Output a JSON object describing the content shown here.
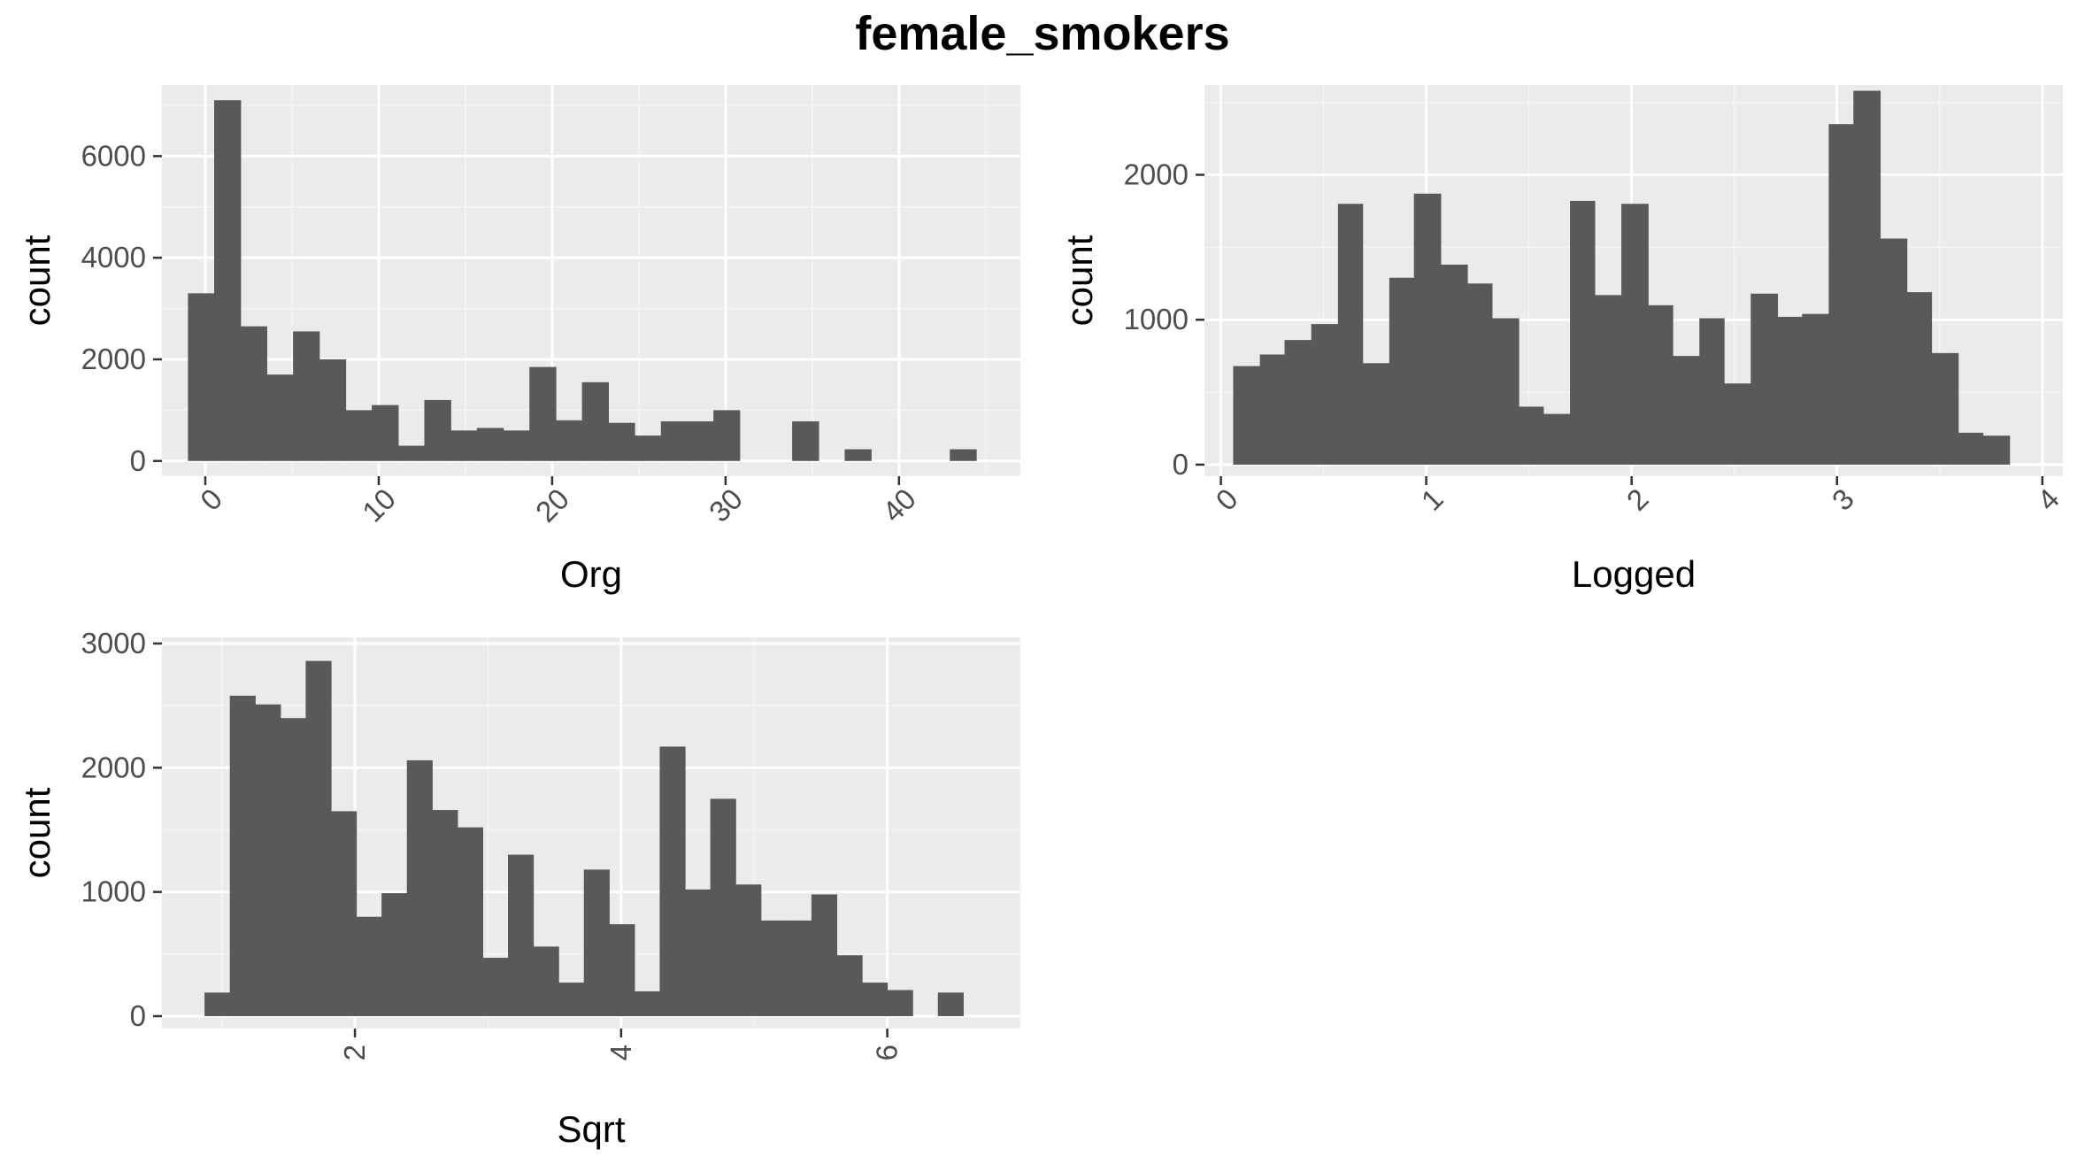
{
  "title": "female_smokers",
  "colors": {
    "panel_bg": "#ebebeb",
    "grid_major": "#ffffff",
    "grid_minor": "#f5f5f5",
    "bar_fill": "#595959",
    "tick_text": "#4d4d4d"
  },
  "chart_data": [
    {
      "type": "bar",
      "histogram": true,
      "xlabel": "Org",
      "ylabel": "count",
      "xlim": [
        -2.5,
        47
      ],
      "ylim": [
        -300,
        7400
      ],
      "xticks": [
        0,
        10,
        20,
        30,
        40
      ],
      "yticks": [
        0,
        2000,
        4000,
        6000
      ],
      "grid": true,
      "bin_edges": [
        -1.0,
        0.51,
        2.03,
        3.54,
        5.06,
        6.57,
        8.09,
        9.6,
        11.12,
        12.63,
        14.15,
        15.66,
        17.18,
        18.69,
        20.21,
        21.72,
        23.24,
        24.75,
        26.27,
        27.78,
        29.3,
        30.81,
        32.33,
        33.84,
        35.36,
        36.87,
        38.39,
        39.9,
        41.42,
        42.93,
        44.45
      ],
      "values": [
        3300,
        7100,
        2650,
        1700,
        2550,
        2000,
        1000,
        1100,
        300,
        1200,
        600,
        650,
        600,
        1850,
        800,
        1550,
        750,
        500,
        780,
        780,
        1000,
        0,
        0,
        780,
        0,
        230,
        0,
        0,
        0,
        230
      ]
    },
    {
      "type": "bar",
      "histogram": true,
      "xlabel": "Logged",
      "ylabel": "count",
      "xlim": [
        -0.08,
        4.1
      ],
      "ylim": [
        -80,
        2620
      ],
      "xticks": [
        0,
        1,
        2,
        3,
        4
      ],
      "yticks": [
        0,
        1000,
        2000
      ],
      "grid": true,
      "bin_edges": [
        0.06,
        0.19,
        0.31,
        0.44,
        0.57,
        0.69,
        0.82,
        0.94,
        1.07,
        1.2,
        1.32,
        1.45,
        1.57,
        1.7,
        1.82,
        1.95,
        2.08,
        2.2,
        2.33,
        2.45,
        2.58,
        2.71,
        2.83,
        2.96,
        3.08,
        3.21,
        3.34,
        3.46,
        3.59,
        3.71,
        3.84
      ],
      "values": [
        680,
        760,
        860,
        970,
        1800,
        700,
        1290,
        1870,
        1380,
        1250,
        1010,
        400,
        350,
        1820,
        1170,
        1800,
        1100,
        750,
        1010,
        560,
        1180,
        1020,
        1040,
        2350,
        2580,
        1560,
        1190,
        770,
        220,
        200
      ]
    },
    {
      "type": "bar",
      "histogram": true,
      "xlabel": "Sqrt",
      "ylabel": "count",
      "xlim": [
        0.55,
        7.0
      ],
      "ylim": [
        -100,
        3050
      ],
      "xticks": [
        2,
        4,
        6
      ],
      "yticks": [
        0,
        1000,
        2000,
        3000
      ],
      "grid": true,
      "bin_edges": [
        0.87,
        1.06,
        1.25,
        1.44,
        1.63,
        1.82,
        2.01,
        2.2,
        2.39,
        2.58,
        2.77,
        2.96,
        3.15,
        3.34,
        3.53,
        3.72,
        3.91,
        4.1,
        4.29,
        4.48,
        4.67,
        4.86,
        5.05,
        5.24,
        5.43,
        5.62,
        5.81,
        6.0,
        6.19,
        6.38,
        6.57
      ],
      "values": [
        190,
        2580,
        2510,
        2400,
        2860,
        1650,
        800,
        990,
        2060,
        1660,
        1520,
        470,
        1300,
        560,
        270,
        1180,
        740,
        200,
        2170,
        1020,
        1750,
        1060,
        770,
        770,
        980,
        490,
        270,
        210,
        0,
        190
      ]
    }
  ]
}
